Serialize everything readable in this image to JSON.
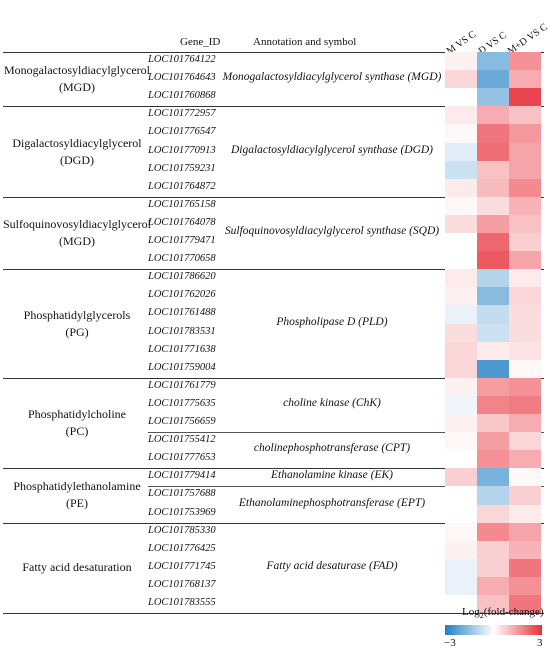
{
  "chart_data": {
    "type": "heatmap",
    "column_headers": {
      "gene_id": "Gene_ID",
      "annotation": "Annotation and symbol"
    },
    "conditions": [
      "M VS C",
      "D VS C",
      "M+D VS C"
    ],
    "colorscale": {
      "title": "Log2(fold-change)",
      "min": -3,
      "max": 3,
      "min_label": "−3",
      "max_label": "3",
      "low_color": "#1f7fc4",
      "mid_color": "#ffffff",
      "high_color": "#e8303a"
    },
    "groups": [
      {
        "category": [
          "Monogalactosyldiacylglycerol",
          "(MGD)"
        ],
        "enzymes": [
          {
            "annotation": "Monogalactosyldiacylglycerol synthase (MGD)",
            "genes": [
              {
                "id": "LOC101764122",
                "values": [
                  0.2,
                  -1.6,
                  1.6
                ]
              },
              {
                "id": "LOC101764643",
                "values": [
                  0.6,
                  -2.0,
                  1.2
                ]
              },
              {
                "id": "LOC101760868",
                "values": [
                  0.0,
                  -1.4,
                  2.7
                ]
              }
            ]
          }
        ]
      },
      {
        "category": [
          "Digalactosyldiacylglycerol",
          "(DGD)"
        ],
        "enzymes": [
          {
            "annotation": "Digalactosyldiacylglycerol synthase (DGD)",
            "genes": [
              {
                "id": "LOC101772957",
                "values": [
                  0.3,
                  1.2,
                  0.9
                ]
              },
              {
                "id": "LOC101776547",
                "values": [
                  0.1,
                  2.0,
                  1.5
                ]
              },
              {
                "id": "LOC101770913",
                "values": [
                  -0.4,
                  2.1,
                  1.3
                ]
              },
              {
                "id": "LOC101759231",
                "values": [
                  -0.7,
                  0.9,
                  1.3
                ]
              },
              {
                "id": "LOC101764872",
                "values": [
                  0.3,
                  1.0,
                  1.7
                ]
              }
            ]
          }
        ]
      },
      {
        "category": [
          "Sulfoquinovosyldiacylglycerol",
          "(MGD)"
        ],
        "enzymes": [
          {
            "annotation": "Sulfoquinovosyldiacylglycerol synthase (SQD)",
            "genes": [
              {
                "id": "LOC101765158",
                "values": [
                  0.1,
                  0.5,
                  1.1
                ]
              },
              {
                "id": "LOC101764078",
                "values": [
                  0.5,
                  1.4,
                  0.9
                ]
              },
              {
                "id": "LOC101779471",
                "values": [
                  0.0,
                  2.2,
                  0.7
                ]
              },
              {
                "id": "LOC101770658",
                "values": [
                  0.0,
                  2.4,
                  1.3
                ]
              }
            ]
          }
        ]
      },
      {
        "category": [
          "Phosphatidylglycerols",
          "(PG)"
        ],
        "enzymes": [
          {
            "annotation": "Phospholipase D (PLD)",
            "genes": [
              {
                "id": "LOC101786620",
                "values": [
                  0.3,
                  -1.0,
                  0.3
                ]
              },
              {
                "id": "LOC101762026",
                "values": [
                  0.2,
                  -1.6,
                  0.6
                ]
              },
              {
                "id": "LOC101761488",
                "values": [
                  -0.3,
                  -0.8,
                  0.5
                ]
              },
              {
                "id": "LOC101783531",
                "values": [
                  0.5,
                  -0.7,
                  0.5
                ]
              },
              {
                "id": "LOC101771638",
                "values": [
                  0.6,
                  0.3,
                  0.4
                ]
              },
              {
                "id": "LOC101759004",
                "values": [
                  0.6,
                  -2.4,
                  0.1
                ]
              }
            ]
          }
        ]
      },
      {
        "category": [
          "Phosphatidylcholine",
          "(PC)"
        ],
        "enzymes": [
          {
            "annotation": "choline kinase (ChK)",
            "genes": [
              {
                "id": "LOC101761779",
                "values": [
                  0.2,
                  1.4,
                  1.6
                ]
              },
              {
                "id": "LOC101775635",
                "values": [
                  -0.2,
                  1.8,
                  1.9
                ]
              },
              {
                "id": "LOC101756659",
                "values": [
                  0.2,
                  0.8,
                  1.2
                ]
              }
            ]
          },
          {
            "annotation": "cholinephosphotransferase (CPT)",
            "genes": [
              {
                "id": "LOC101755412",
                "values": [
                  0.1,
                  1.4,
                  0.6
                ]
              },
              {
                "id": "LOC101777653",
                "values": [
                  0.0,
                  1.6,
                  1.2
                ]
              }
            ]
          }
        ]
      },
      {
        "category": [
          "Phosphatidylethanolamine",
          "(PE)"
        ],
        "enzymes": [
          {
            "annotation": "Ethanolamine kinase (EK)",
            "genes": [
              {
                "id": "LOC101779414",
                "values": [
                  0.7,
                  -1.8,
                  0.1
                ]
              }
            ]
          },
          {
            "annotation": "Ethanolaminephosphotransferase (EPT)",
            "genes": [
              {
                "id": "LOC101757688",
                "values": [
                  0.0,
                  -1.0,
                  0.7
                ]
              },
              {
                "id": "LOC101753969",
                "values": [
                  0.0,
                  0.6,
                  0.3
                ]
              }
            ]
          }
        ]
      },
      {
        "category": [
          "Fatty acid desaturation"
        ],
        "enzymes": [
          {
            "annotation": "Fatty acid desaturase (FAD)",
            "genes": [
              {
                "id": "LOC101785330",
                "values": [
                  0.1,
                  1.7,
                  1.3
                ]
              },
              {
                "id": "LOC101776425",
                "values": [
                  0.2,
                  0.7,
                  1.1
                ]
              },
              {
                "id": "LOC101771745",
                "values": [
                  -0.3,
                  0.7,
                  2.0
                ]
              },
              {
                "id": "LOC101768137",
                "values": [
                  -0.3,
                  1.2,
                  1.6
                ]
              },
              {
                "id": "LOC101783555",
                "values": [
                  0.0,
                  0.9,
                  2.0
                ]
              }
            ]
          }
        ]
      }
    ]
  }
}
